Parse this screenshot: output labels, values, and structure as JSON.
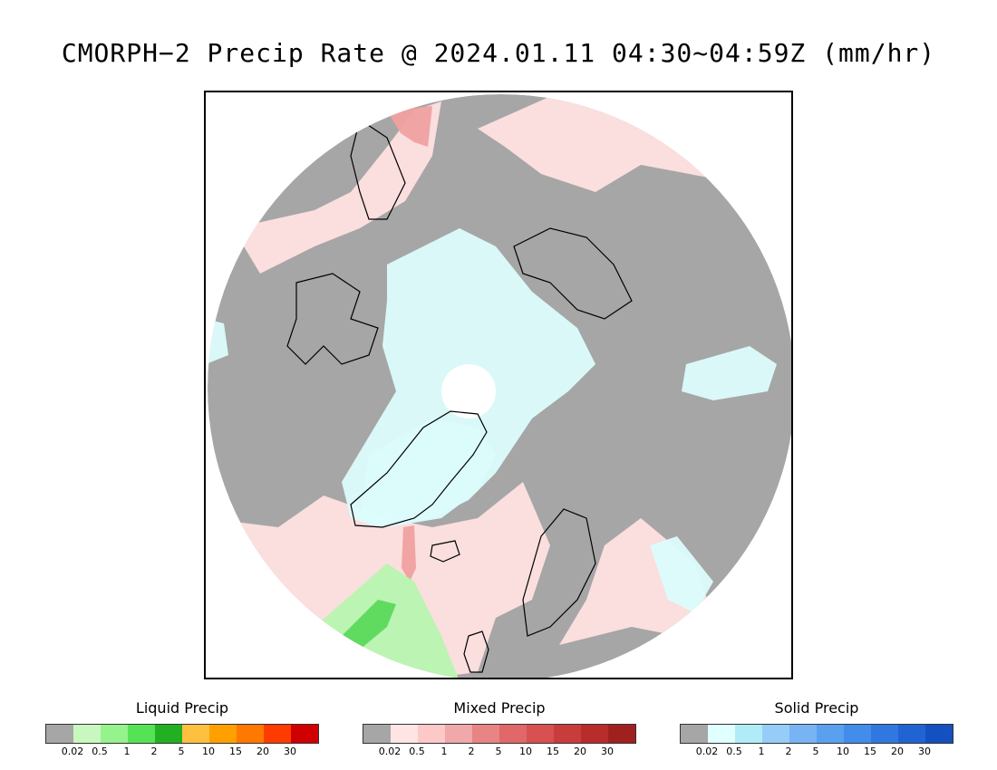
{
  "title": "CMORPH−2 Precip Rate @ 2024.01.11 04:30~04:59Z (mm/hr)",
  "legends": [
    {
      "title": "Liquid Precip",
      "colors": [
        "#a6a6a6",
        "#c8f7c0",
        "#96f28c",
        "#55e355",
        "#22b022",
        "#ffc040",
        "#ffa000",
        "#ff7800",
        "#ff3c00",
        "#d00000"
      ],
      "ticks": [
        "0.02",
        "0.5",
        "1",
        "2",
        "5",
        "10",
        "15",
        "20",
        "30"
      ]
    },
    {
      "title": "Mixed Precip",
      "colors": [
        "#a6a6a6",
        "#ffe4e4",
        "#fcc8c8",
        "#f0a8a8",
        "#e88484",
        "#e06868",
        "#d85050",
        "#c83c3c",
        "#b82c2c",
        "#a02020"
      ],
      "ticks": [
        "0.02",
        "0.5",
        "1",
        "2",
        "5",
        "10",
        "15",
        "20",
        "30"
      ]
    },
    {
      "title": "Solid Precip",
      "colors": [
        "#a6a6a6",
        "#e0ffff",
        "#b0ecf8",
        "#96ccf8",
        "#78b4f4",
        "#5aa0f0",
        "#428cec",
        "#3078e0",
        "#2064d4",
        "#1450c0"
      ],
      "ticks": [
        "0.02",
        "0.5",
        "1",
        "2",
        "5",
        "10",
        "15",
        "20",
        "30"
      ]
    }
  ],
  "map_colors": {
    "no_precip": "#a6a6a6",
    "mixed_light": "#ffe0e0",
    "mixed_moderate": "#f0a0a0",
    "solid_light": "#dcfcfc",
    "liquid_light": "#b8f4b0",
    "liquid_moderate": "#5cd85c",
    "coastline": "#000000"
  }
}
